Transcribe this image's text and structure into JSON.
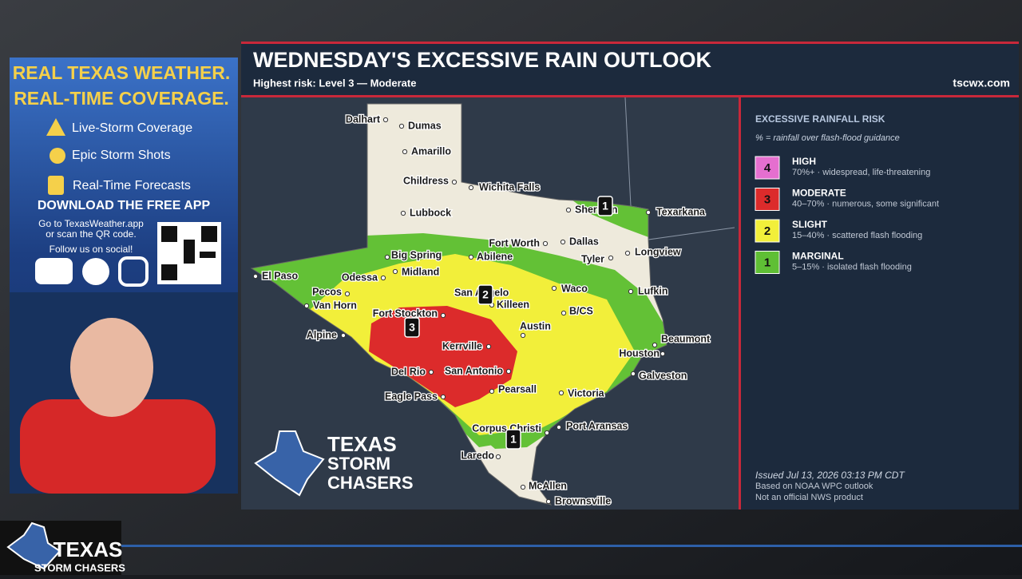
{
  "promo": {
    "headline": [
      "REAL TEXAS WEATHER.",
      "REAL-TIME COVERAGE."
    ],
    "features": [
      "Live-Storm Coverage",
      "Epic Storm Shots",
      "Real-Time Forecasts"
    ],
    "download": "DOWNLOAD THE FREE APP",
    "instructions": [
      "Go to TexasWeather.app",
      "or scan the QR code."
    ],
    "social": "Follow us on social!"
  },
  "header": {
    "title": "WEDNESDAY'S EXCESSIVE RAIN OUTLOOK",
    "subtitle": "Highest risk:  Level 3 — Moderate",
    "site": "tscwx.com"
  },
  "map": {
    "cities": [
      "Dalhart",
      "Dumas",
      "Amarillo",
      "Childress",
      "Wichita Falls",
      "Lubbock",
      "Sherman",
      "Texarkana",
      "Big Spring",
      "Abilene",
      "Fort Worth",
      "Dallas",
      "Tyler",
      "Longview",
      "El Paso",
      "Odessa",
      "Midland",
      "Pecos",
      "Van Horn",
      "San Angelo",
      "Waco",
      "Lufkin",
      "Killeen",
      "Fort Stockton",
      "B/CS",
      "Alpine",
      "Austin",
      "Beaumont",
      "Kerrville",
      "Houston",
      "Del Rio",
      "San Antonio",
      "Galveston",
      "Eagle Pass",
      "Pearsall",
      "Victoria",
      "Corpus Christi",
      "Port Aransas",
      "Laredo",
      "McAllen",
      "Brownsville"
    ],
    "risk_badges": [
      "1",
      "2",
      "3",
      "1"
    ],
    "logo": [
      "TEXAS",
      "STORM",
      "CHASERS"
    ]
  },
  "legend": {
    "title": "EXCESSIVE RAINFALL RISK",
    "note": "% = rainfall over flash-flood guidance",
    "levels": [
      {
        "level": "4",
        "name": "HIGH",
        "desc": "70%+ · widespread, life-threatening",
        "color": "#e56fcf"
      },
      {
        "level": "3",
        "name": "MODERATE",
        "desc": "40–70% · numerous, some significant",
        "color": "#dc2b2b"
      },
      {
        "level": "2",
        "name": "SLIGHT",
        "desc": "15–40% · scattered flash flooding",
        "color": "#f2ef3a"
      },
      {
        "level": "1",
        "name": "MARGINAL",
        "desc": "5–15% · isolated flash flooding",
        "color": "#5fbf35"
      }
    ]
  },
  "footer": {
    "issued": "Issued Jul 13, 2026 03:13 PM CDT",
    "source": "Based on NOAA WPC outlook",
    "disclaimer": "Not an official NWS product"
  },
  "bottom_logo": [
    "TEXAS",
    "STORM CHASERS"
  ]
}
